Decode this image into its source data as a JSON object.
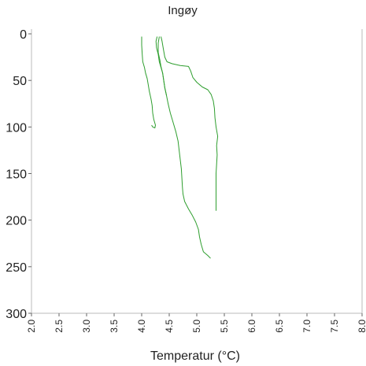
{
  "chart_data": {
    "type": "line",
    "title": "Ingøy",
    "xlabel": "Temperatur (°C)",
    "ylabel": "",
    "xlim": [
      2.0,
      8.0
    ],
    "ylim": [
      0,
      300
    ],
    "y_inverted": true,
    "grid": false,
    "legend": "none",
    "line_color": "#2e9e2e",
    "axis_color": "#bbbbbb",
    "xticks": [
      2.0,
      2.5,
      3.0,
      3.5,
      4.0,
      4.5,
      5.0,
      5.5,
      6.0,
      6.5,
      7.0,
      7.5,
      8.0
    ],
    "xtick_labels": [
      "2.0",
      "2.5",
      "3.0",
      "3.5",
      "4.0",
      "4.5",
      "5.0",
      "5.5",
      "6.0",
      "6.5",
      "7.0",
      "7.5",
      "8.0"
    ],
    "yticks": [
      0,
      50,
      100,
      150,
      200,
      250,
      300
    ],
    "ytick_labels": [
      "0",
      "50",
      "100",
      "150",
      "200",
      "250",
      "300"
    ],
    "series": [
      {
        "points": [
          [
            4.0,
            3
          ],
          [
            4.0,
            12
          ],
          [
            4.01,
            22
          ],
          [
            4.02,
            30
          ],
          [
            4.05,
            36
          ],
          [
            4.07,
            42
          ],
          [
            4.1,
            48
          ],
          [
            4.12,
            55
          ],
          [
            4.14,
            62
          ],
          [
            4.17,
            70
          ],
          [
            4.19,
            77
          ],
          [
            4.2,
            85
          ],
          [
            4.22,
            92
          ],
          [
            4.25,
            98
          ],
          [
            4.24,
            101
          ],
          [
            4.2,
            100
          ],
          [
            4.18,
            98
          ]
        ]
      },
      {
        "points": [
          [
            4.32,
            3
          ],
          [
            4.3,
            10
          ],
          [
            4.3,
            20
          ],
          [
            4.33,
            28
          ],
          [
            4.35,
            35
          ],
          [
            4.38,
            42
          ],
          [
            4.4,
            50
          ],
          [
            4.42,
            58
          ],
          [
            4.45,
            66
          ],
          [
            4.48,
            75
          ],
          [
            4.52,
            85
          ],
          [
            4.57,
            95
          ],
          [
            4.62,
            105
          ],
          [
            4.66,
            115
          ],
          [
            4.68,
            125
          ],
          [
            4.7,
            135
          ],
          [
            4.72,
            145
          ],
          [
            4.73,
            155
          ],
          [
            4.74,
            165
          ],
          [
            4.75,
            172
          ],
          [
            4.78,
            180
          ],
          [
            4.85,
            188
          ],
          [
            4.92,
            195
          ],
          [
            4.98,
            202
          ],
          [
            5.03,
            210
          ],
          [
            5.05,
            218
          ],
          [
            5.08,
            226
          ],
          [
            5.12,
            234
          ],
          [
            5.2,
            238
          ],
          [
            5.25,
            241
          ]
        ]
      },
      {
        "points": [
          [
            4.35,
            3
          ],
          [
            4.37,
            8
          ],
          [
            4.39,
            15
          ],
          [
            4.42,
            25
          ],
          [
            4.46,
            30
          ],
          [
            4.55,
            32
          ],
          [
            4.7,
            34
          ],
          [
            4.85,
            35
          ],
          [
            4.89,
            40
          ],
          [
            4.93,
            47
          ],
          [
            5.0,
            52
          ],
          [
            5.1,
            57
          ],
          [
            5.2,
            60
          ],
          [
            5.26,
            65
          ],
          [
            5.3,
            72
          ],
          [
            5.32,
            80
          ],
          [
            5.33,
            90
          ],
          [
            5.35,
            100
          ],
          [
            5.38,
            110
          ],
          [
            5.36,
            120
          ],
          [
            5.37,
            130
          ],
          [
            5.36,
            140
          ],
          [
            5.35,
            150
          ],
          [
            5.35,
            160
          ],
          [
            5.35,
            170
          ],
          [
            5.35,
            180
          ],
          [
            5.35,
            190
          ]
        ]
      },
      {
        "points": [
          [
            4.28,
            3
          ],
          [
            4.26,
            8
          ],
          [
            4.27,
            15
          ],
          [
            4.3,
            22
          ],
          [
            4.32,
            30
          ],
          [
            4.35,
            36
          ],
          [
            4.38,
            42
          ],
          [
            4.4,
            50
          ],
          [
            4.42,
            58
          ],
          [
            4.45,
            66
          ]
        ]
      }
    ]
  }
}
